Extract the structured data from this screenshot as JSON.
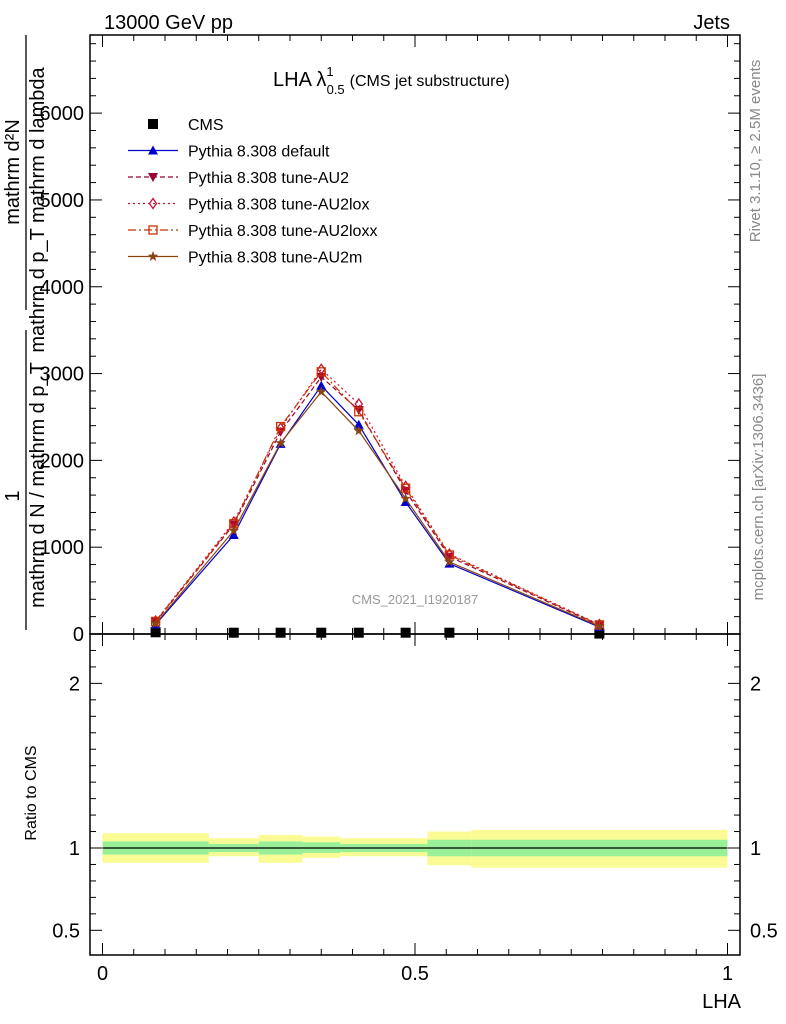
{
  "header": {
    "left": "13000 GeV pp",
    "right": "Jets"
  },
  "title": {
    "main": "LHA λ",
    "sup": "1",
    "sub": "0.5",
    "extra": "(CMS jet substructure)"
  },
  "side_labels": {
    "rivet": "Rivet 3.1.10, ≥ 2.5M events",
    "mcplots": "mcplots.cern.ch [arXiv:1306.3436]"
  },
  "watermark": "CMS_2021_I1920187",
  "ylabel_main": {
    "top_num": "mathrm d²N",
    "top_den": "mathrm d p_T mathrm d lambda",
    "bottom_num": "1",
    "bottom_den": "mathrm d N / mathrm d p_T"
  },
  "ylabel_ratio": "Ratio to CMS",
  "xlabel": "LHA",
  "chart_data": {
    "type": "line",
    "main": {
      "xlim": [
        -0.02,
        1.02
      ],
      "ylim": [
        0,
        6900
      ],
      "y_ticks": [
        0,
        1000,
        2000,
        3000,
        4000,
        5000,
        6000
      ],
      "x": [
        0.085,
        0.21,
        0.285,
        0.35,
        0.41,
        0.485,
        0.555,
        0.795
      ],
      "series": [
        {
          "name": "CMS",
          "color": "#000000",
          "marker": "square",
          "line": "none",
          "values": [
            20,
            15,
            15,
            15,
            15,
            15,
            15,
            5
          ]
        },
        {
          "name": "Pythia 8.308 default",
          "color": "#0000cc",
          "marker": "triangle-up",
          "line": "solid",
          "values": [
            110,
            1140,
            2190,
            2860,
            2410,
            1520,
            810,
            80
          ]
        },
        {
          "name": "Pythia 8.308 tune-AU2",
          "color": "#990033",
          "marker": "triangle-down",
          "line": "dashed",
          "values": [
            140,
            1260,
            2330,
            2960,
            2580,
            1650,
            890,
            100
          ]
        },
        {
          "name": "Pythia 8.308 tune-AU2lox",
          "color": "#cc1133",
          "marker": "diamond-open",
          "line": "dotted",
          "values": [
            150,
            1290,
            2370,
            3050,
            2650,
            1700,
            920,
            110
          ]
        },
        {
          "name": "Pythia 8.308 tune-AU2loxx",
          "color": "#cc3300",
          "marker": "square-open",
          "line": "dashdot",
          "values": [
            145,
            1270,
            2390,
            3020,
            2560,
            1680,
            910,
            105
          ]
        },
        {
          "name": "Pythia 8.308 tune-AU2m",
          "color": "#8b4513",
          "marker": "star",
          "line": "solid",
          "values": [
            120,
            1190,
            2200,
            2790,
            2340,
            1560,
            830,
            90
          ]
        }
      ]
    },
    "ratio": {
      "xlim": [
        -0.02,
        1.02
      ],
      "ylim": [
        0.35,
        2.3
      ],
      "y_ticks": [
        0.5,
        1,
        2
      ],
      "x_ticks": [
        0,
        0.5,
        1
      ],
      "band_colors": {
        "inner": "#99f099",
        "outer": "#fbfb96"
      },
      "bands": [
        {
          "x0": 0.0,
          "x1": 0.17,
          "inner": [
            0.96,
            1.04
          ],
          "outer": [
            0.91,
            1.09
          ]
        },
        {
          "x0": 0.17,
          "x1": 0.25,
          "inner": [
            0.975,
            1.025
          ],
          "outer": [
            0.95,
            1.06
          ]
        },
        {
          "x0": 0.25,
          "x1": 0.32,
          "inner": [
            0.96,
            1.04
          ],
          "outer": [
            0.91,
            1.08
          ]
        },
        {
          "x0": 0.32,
          "x1": 0.38,
          "inner": [
            0.97,
            1.035
          ],
          "outer": [
            0.94,
            1.07
          ]
        },
        {
          "x0": 0.38,
          "x1": 0.52,
          "inner": [
            0.975,
            1.025
          ],
          "outer": [
            0.95,
            1.06
          ]
        },
        {
          "x0": 0.52,
          "x1": 0.59,
          "inner": [
            0.95,
            1.05
          ],
          "outer": [
            0.895,
            1.1
          ]
        },
        {
          "x0": 0.59,
          "x1": 1.0,
          "inner": [
            0.95,
            1.05
          ],
          "outer": [
            0.88,
            1.11
          ]
        }
      ],
      "reference": 1
    }
  }
}
